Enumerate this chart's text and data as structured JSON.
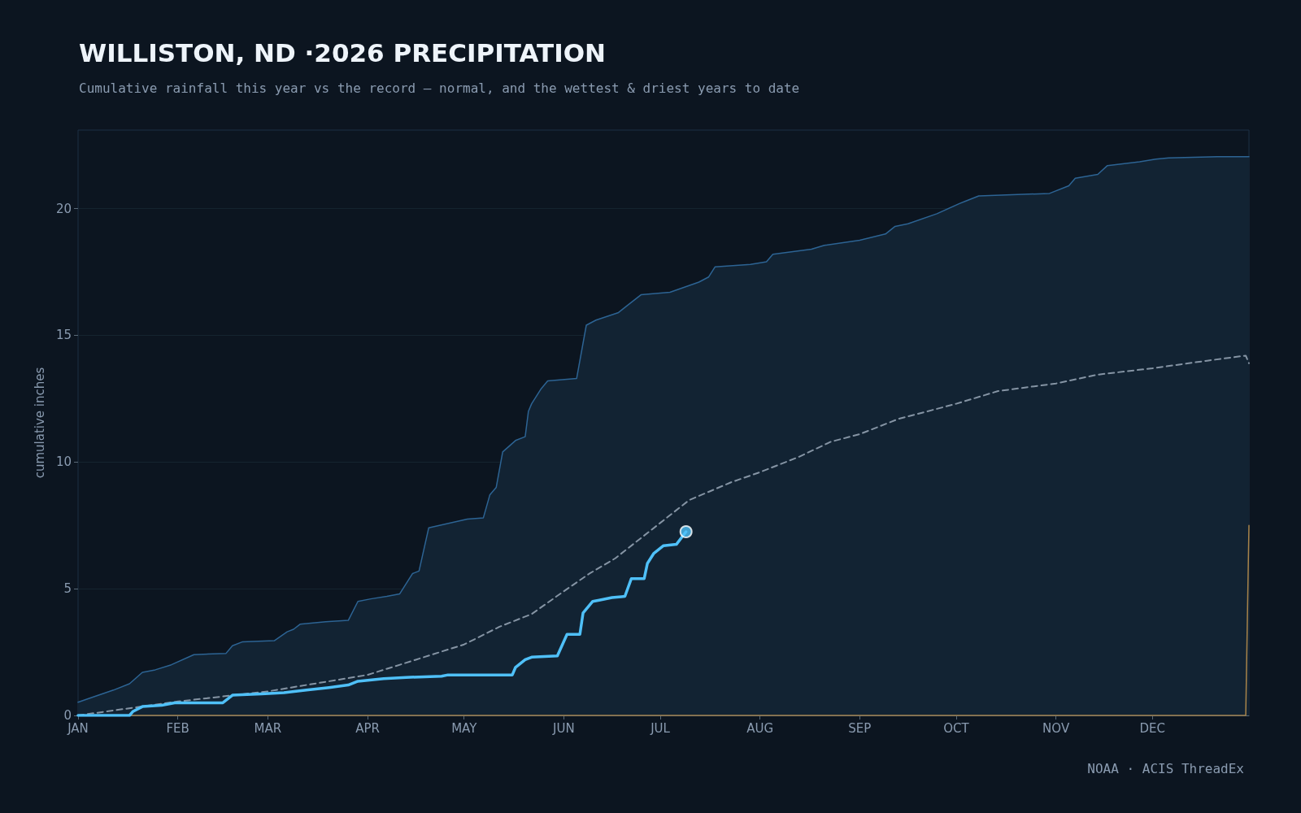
{
  "chart_data": {
    "type": "line",
    "title": "WILLISTON, ND ·2026 PRECIPITATION",
    "subtitle": "Cumulative rainfall this year vs the record — normal, and the wettest & driest years to date",
    "ylabel": "cumulative inches",
    "annotations": [
      "NOAA · ACIS ThreadEx"
    ],
    "xlim": [
      "2026-01-01",
      "2026-12-31"
    ],
    "xticks": [
      {
        "value": "2026-01-01",
        "label": "JAN"
      },
      {
        "value": "2026-02-01",
        "label": "FEB"
      },
      {
        "value": "2026-03-01",
        "label": "MAR"
      },
      {
        "value": "2026-04-01",
        "label": "APR"
      },
      {
        "value": "2026-05-01",
        "label": "MAY"
      },
      {
        "value": "2026-06-01",
        "label": "JUN"
      },
      {
        "value": "2026-07-01",
        "label": "JUL"
      },
      {
        "value": "2026-08-01",
        "label": "AUG"
      },
      {
        "value": "2026-09-01",
        "label": "SEP"
      },
      {
        "value": "2026-10-01",
        "label": "OCT"
      },
      {
        "value": "2026-11-01",
        "label": "NOV"
      },
      {
        "value": "2026-12-01",
        "label": "DEC"
      }
    ],
    "ylim": [
      0,
      23.1
    ],
    "yticks": [
      0,
      5,
      10,
      15,
      20
    ],
    "grid": "y",
    "series": [
      {
        "type": "area",
        "color": "#2d6494",
        "line_style": "solid",
        "x": [
          "2026-01-01",
          "2026-01-05",
          "2026-01-12",
          "2026-01-17",
          "2026-01-21",
          "2026-01-25",
          "2026-01-30",
          "2026-02-06",
          "2026-02-16",
          "2026-02-18",
          "2026-02-21",
          "2026-03-03",
          "2026-03-07",
          "2026-03-09",
          "2026-03-11",
          "2026-03-19",
          "2026-03-26",
          "2026-03-29",
          "2026-04-02",
          "2026-04-07",
          "2026-04-11",
          "2026-04-15",
          "2026-04-17",
          "2026-04-20",
          "2026-05-02",
          "2026-05-07",
          "2026-05-09",
          "2026-05-11",
          "2026-05-13",
          "2026-05-17",
          "2026-05-20",
          "2026-05-21",
          "2026-05-22",
          "2026-05-25",
          "2026-05-27",
          "2026-06-05",
          "2026-06-08",
          "2026-06-11",
          "2026-06-18",
          "2026-06-22",
          "2026-06-25",
          "2026-07-04",
          "2026-07-13",
          "2026-07-16",
          "2026-07-18",
          "2026-07-29",
          "2026-08-03",
          "2026-08-05",
          "2026-08-17",
          "2026-08-21",
          "2026-09-01",
          "2026-09-09",
          "2026-09-12",
          "2026-09-16",
          "2026-09-25",
          "2026-10-02",
          "2026-10-04",
          "2026-10-08",
          "2026-10-30",
          "2026-11-05",
          "2026-11-07",
          "2026-11-14",
          "2026-11-17",
          "2026-11-27",
          "2026-12-02",
          "2026-12-06",
          "2026-12-21",
          "2026-12-31"
        ],
        "values": [
          0.52,
          0.7,
          1.0,
          1.25,
          1.7,
          1.8,
          2.0,
          2.4,
          2.45,
          2.75,
          2.9,
          2.95,
          3.3,
          3.4,
          3.6,
          3.7,
          3.75,
          4.5,
          4.6,
          4.7,
          4.8,
          5.6,
          5.7,
          7.4,
          7.75,
          7.8,
          8.7,
          9.0,
          10.4,
          10.85,
          11.0,
          12.0,
          12.3,
          12.9,
          13.2,
          13.3,
          15.4,
          15.6,
          15.9,
          16.3,
          16.6,
          16.7,
          17.1,
          17.3,
          17.7,
          17.8,
          17.9,
          18.2,
          18.4,
          18.55,
          18.75,
          19.0,
          19.3,
          19.4,
          19.8,
          20.2,
          20.3,
          20.5,
          20.6,
          20.9,
          21.2,
          21.35,
          21.7,
          21.85,
          21.95,
          22.0,
          22.05,
          22.05
        ]
      },
      {
        "color": "#a8844a",
        "line_style": "solid",
        "x": [
          "2026-01-01",
          "2026-12-30",
          "2026-12-31"
        ],
        "values": [
          0,
          0,
          7.5
        ]
      },
      {
        "color": "#8594a4",
        "line_style": "dashed",
        "x": [
          "2026-01-01",
          "2026-01-15",
          "2026-02-01",
          "2026-03-01",
          "2026-04-01",
          "2026-04-16",
          "2026-05-01",
          "2026-05-12",
          "2026-05-22",
          "2026-06-01",
          "2026-06-09",
          "2026-06-17",
          "2026-06-25",
          "2026-07-01",
          "2026-07-10",
          "2026-07-23",
          "2026-08-01",
          "2026-08-13",
          "2026-08-23",
          "2026-09-01",
          "2026-09-13",
          "2026-10-01",
          "2026-10-14",
          "2026-11-01",
          "2026-11-14",
          "2026-12-01",
          "2026-12-18",
          "2026-12-30",
          "2026-12-31"
        ],
        "values": [
          0,
          0.25,
          0.55,
          0.95,
          1.6,
          2.2,
          2.8,
          3.5,
          4.0,
          4.9,
          5.6,
          6.2,
          7.0,
          7.6,
          8.5,
          9.2,
          9.6,
          10.2,
          10.8,
          11.1,
          11.7,
          12.3,
          12.8,
          13.1,
          13.45,
          13.7,
          14.0,
          14.2,
          13.9
        ]
      },
      {
        "color": "#4fc0f8",
        "line_style": "solid",
        "x": [
          "2026-01-01",
          "2026-01-17",
          "2026-01-18",
          "2026-01-21",
          "2026-01-27",
          "2026-01-31",
          "2026-02-15",
          "2026-02-18",
          "2026-02-27",
          "2026-03-06",
          "2026-03-13",
          "2026-03-20",
          "2026-03-26",
          "2026-03-29",
          "2026-04-06",
          "2026-04-13",
          "2026-04-24",
          "2026-04-26",
          "2026-05-16",
          "2026-05-17",
          "2026-05-20",
          "2026-05-22",
          "2026-05-30",
          "2026-06-02",
          "2026-06-06",
          "2026-06-07",
          "2026-06-10",
          "2026-06-12",
          "2026-06-16",
          "2026-06-20",
          "2026-06-22",
          "2026-06-26",
          "2026-06-27",
          "2026-06-29",
          "2026-07-02",
          "2026-07-06",
          "2026-07-09"
        ],
        "values": [
          0,
          0,
          0.15,
          0.35,
          0.4,
          0.5,
          0.5,
          0.8,
          0.85,
          0.9,
          1.0,
          1.1,
          1.2,
          1.35,
          1.45,
          1.5,
          1.55,
          1.6,
          1.6,
          1.9,
          2.2,
          2.3,
          2.35,
          3.2,
          3.2,
          4.05,
          4.5,
          4.55,
          4.65,
          4.7,
          5.4,
          5.4,
          6.0,
          6.4,
          6.7,
          6.75,
          7.25
        ]
      },
      {
        "type": "scatter",
        "color": "#4fc0f8",
        "marker": "circle",
        "x": [
          "2026-07-09"
        ],
        "values": [
          7.25
        ]
      }
    ]
  }
}
